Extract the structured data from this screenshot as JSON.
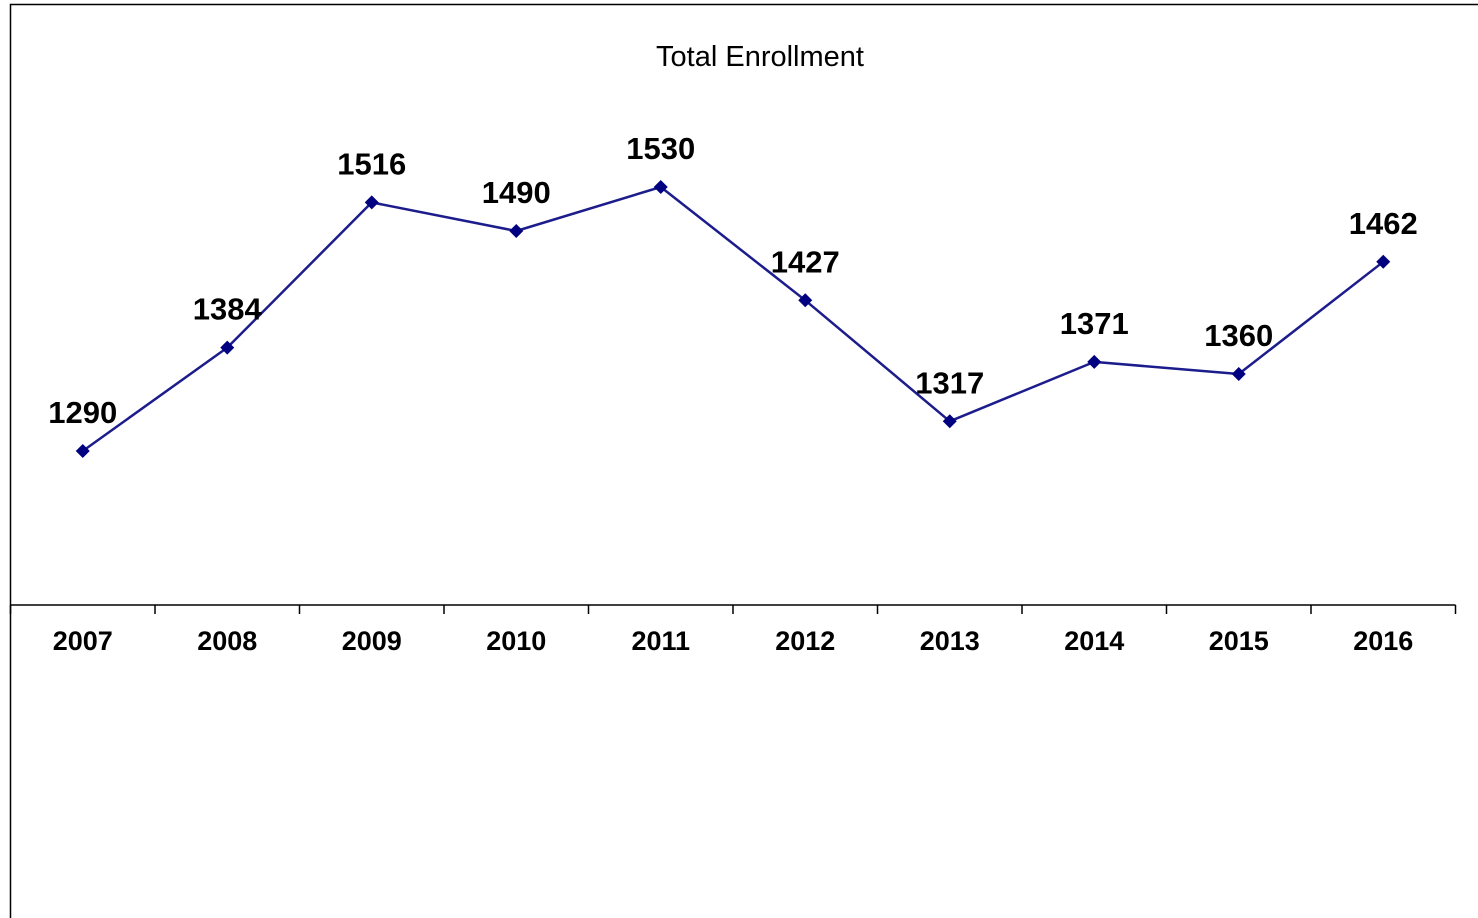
{
  "chart_data": {
    "type": "line",
    "title": "Total Enrollment",
    "categories": [
      "2007",
      "2008",
      "2009",
      "2010",
      "2011",
      "2012",
      "2013",
      "2014",
      "2015",
      "2016"
    ],
    "series": [
      {
        "values": [
          1290,
          1384,
          1516,
          1490,
          1530,
          1427,
          1317,
          1371,
          1360,
          1462
        ]
      }
    ],
    "xlabel": "",
    "ylabel": "",
    "ylim": [
      1150,
      1650
    ],
    "grid": false,
    "legend": "none",
    "line_color": "#1c1c8c",
    "marker_color": "#000080",
    "marker": "diamond",
    "show_data_labels": true
  }
}
